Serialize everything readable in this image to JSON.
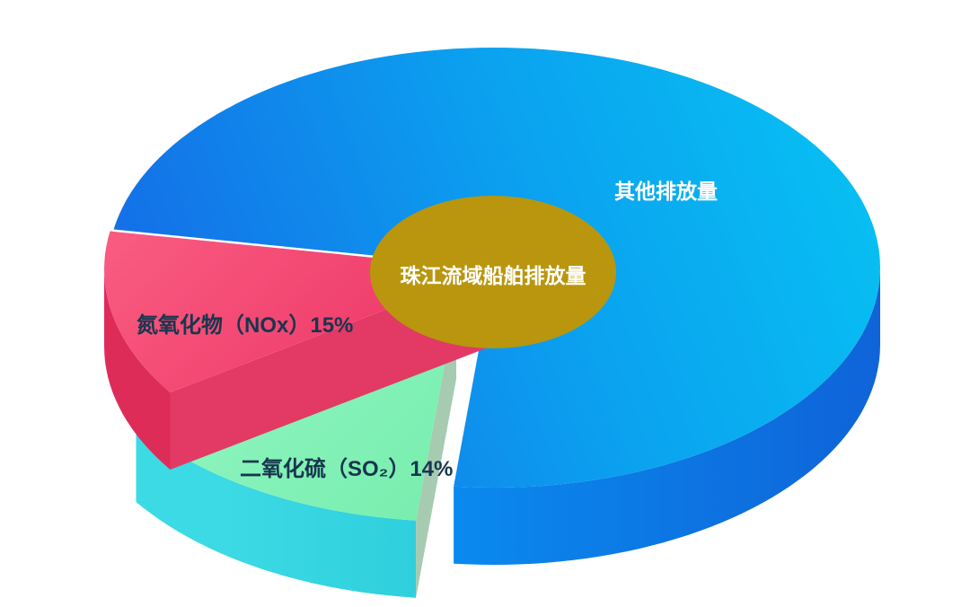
{
  "chart_data": {
    "type": "pie",
    "style": "3d-exploded-donut-with-center-ellipse",
    "center_label": "珠江流域船舶排放量",
    "unit": "%",
    "legend_position": "on-slice",
    "slices": [
      {
        "id": "other",
        "label": "其他排放量",
        "value": 71,
        "display": "其他排放量",
        "color": "#0D8BEC",
        "side_color": "#0C7BE4"
      },
      {
        "id": "so2",
        "label": "二氧化硫（SO₂）",
        "value": 14,
        "display": "二氧化硫（SO₂）14%",
        "color": "#7EF0B2",
        "side_color": "#36D7E2",
        "cut_face_color": "#A6CBB1"
      },
      {
        "id": "nox",
        "label": "氮氧化物（NOx）",
        "value": 15,
        "display": "氮氧化物（NOx）15%",
        "color": "#F4466E",
        "side_color": "#DE2C59",
        "cut_face_color": "#E23A64"
      }
    ],
    "center_ellipse_color": "#B9960D",
    "label_text_color": "#17364E",
    "label_text_color_on_blue": "#FFFFFF",
    "background_color": "#FFFFFF"
  }
}
